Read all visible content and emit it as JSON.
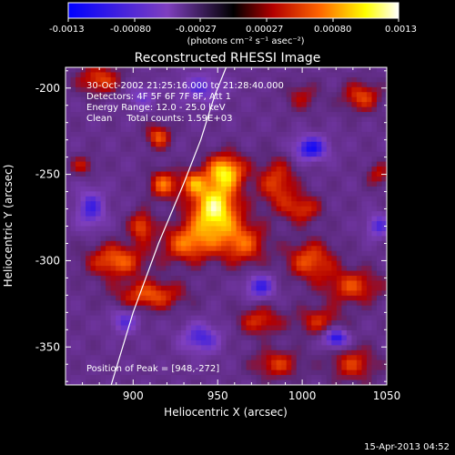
{
  "colorbar": {
    "ticks": [
      "-0.0013",
      "-0.00080",
      "-0.00027",
      "0.00027",
      "0.00080",
      "0.0013"
    ],
    "units": "(photons cm⁻² s⁻¹ asec⁻²)"
  },
  "info": {
    "time": "30-Oct-2002 21:25:16.000 to 21:28:40.000",
    "detectors": "Detectors: 4F 5F 6F 7F 8F, Att 1",
    "energy": "Energy Range: 12.0 - 25.0 keV",
    "clean": "Clean     Total counts: 1.59E+03",
    "peak": "Position of Peak = [948,-272]"
  },
  "footer": {
    "date": "15-Apr-2013 04:52"
  },
  "chart_data": {
    "type": "heatmap",
    "title": "Reconstructed RHESSI Image",
    "xlabel": "Heliocentric X (arcsec)",
    "ylabel": "Heliocentric Y (arcsec)",
    "xlim": [
      860,
      1050
    ],
    "ylim": [
      -372,
      -188
    ],
    "x_ticks": [
      900,
      950,
      1000,
      1050
    ],
    "y_ticks": [
      -200,
      -250,
      -300,
      -350
    ],
    "x_tick_labels": [
      "900",
      "950",
      "1000",
      "1050"
    ],
    "y_tick_labels": [
      "-200",
      "-250",
      "-300",
      "-350"
    ],
    "color_range": [
      -0.0013,
      0.0013
    ],
    "colormap": [
      "#0000ff",
      "#7f3fbf",
      "#000000",
      "#b30000",
      "#ff6400",
      "#ffff00",
      "#ffffff"
    ],
    "peak": [
      948,
      -272
    ],
    "sources": [
      {
        "x": 948,
        "y": -270,
        "sx": 10,
        "sy": 12,
        "amp": 1.0
      },
      {
        "x": 955,
        "y": -248,
        "sx": 8,
        "sy": 7,
        "amp": 0.78
      },
      {
        "x": 932,
        "y": -290,
        "sx": 11,
        "sy": 8,
        "amp": 0.6
      },
      {
        "x": 965,
        "y": -290,
        "sx": 10,
        "sy": 9,
        "amp": 0.55
      },
      {
        "x": 918,
        "y": -256,
        "sx": 6,
        "sy": 6,
        "amp": 0.6
      },
      {
        "x": 915,
        "y": -228,
        "sx": 5,
        "sy": 5,
        "amp": 0.55
      },
      {
        "x": 935,
        "y": -255,
        "sx": 5,
        "sy": 5,
        "amp": 0.5
      },
      {
        "x": 905,
        "y": -280,
        "sx": 5,
        "sy": 6,
        "amp": 0.55
      },
      {
        "x": 890,
        "y": -300,
        "sx": 12,
        "sy": 7,
        "amp": 0.6
      },
      {
        "x": 910,
        "y": -320,
        "sx": 14,
        "sy": 6,
        "amp": 0.55
      },
      {
        "x": 985,
        "y": -255,
        "sx": 8,
        "sy": 10,
        "amp": 0.5
      },
      {
        "x": 1000,
        "y": -270,
        "sx": 8,
        "sy": 6,
        "amp": 0.45
      },
      {
        "x": 1005,
        "y": -300,
        "sx": 10,
        "sy": 8,
        "amp": 0.55
      },
      {
        "x": 1030,
        "y": -315,
        "sx": 12,
        "sy": 7,
        "amp": 0.5
      },
      {
        "x": 1010,
        "y": -335,
        "sx": 10,
        "sy": 6,
        "amp": 0.4
      },
      {
        "x": 975,
        "y": -335,
        "sx": 9,
        "sy": 6,
        "amp": 0.45
      },
      {
        "x": 880,
        "y": -195,
        "sx": 9,
        "sy": 6,
        "amp": 0.5
      },
      {
        "x": 1035,
        "y": -205,
        "sx": 8,
        "sy": 6,
        "amp": 0.5
      },
      {
        "x": 1000,
        "y": -205,
        "sx": 7,
        "sy": 6,
        "amp": 0.3
      },
      {
        "x": 985,
        "y": -360,
        "sx": 10,
        "sy": 6,
        "amp": 0.45
      },
      {
        "x": 1030,
        "y": -360,
        "sx": 10,
        "sy": 7,
        "amp": 0.45
      },
      {
        "x": 870,
        "y": -245,
        "sx": 5,
        "sy": 4,
        "amp": 0.35
      },
      {
        "x": 1045,
        "y": -250,
        "sx": 5,
        "sy": 5,
        "amp": 0.35
      },
      {
        "x": 1005,
        "y": -235,
        "sx": 7,
        "sy": 5,
        "amp": -0.75
      },
      {
        "x": 975,
        "y": -315,
        "sx": 6,
        "sy": 5,
        "amp": -0.6
      },
      {
        "x": 1020,
        "y": -345,
        "sx": 5,
        "sy": 4,
        "amp": -0.8
      },
      {
        "x": 940,
        "y": -345,
        "sx": 8,
        "sy": 6,
        "amp": -0.55
      },
      {
        "x": 895,
        "y": -335,
        "sx": 6,
        "sy": 5,
        "amp": -0.45
      },
      {
        "x": 875,
        "y": -270,
        "sx": 6,
        "sy": 8,
        "amp": -0.55
      },
      {
        "x": 940,
        "y": -200,
        "sx": 9,
        "sy": 6,
        "amp": -0.45
      },
      {
        "x": 1045,
        "y": -280,
        "sx": 5,
        "sy": 5,
        "amp": -0.5
      },
      {
        "x": 905,
        "y": -205,
        "sx": 6,
        "sy": 5,
        "amp": -0.35
      }
    ],
    "limb_curve": {
      "x": [
        887,
        900,
        915,
        930,
        940,
        948,
        955
      ],
      "y": [
        -372,
        -330,
        -290,
        -255,
        -230,
        -205,
        -188
      ]
    }
  }
}
